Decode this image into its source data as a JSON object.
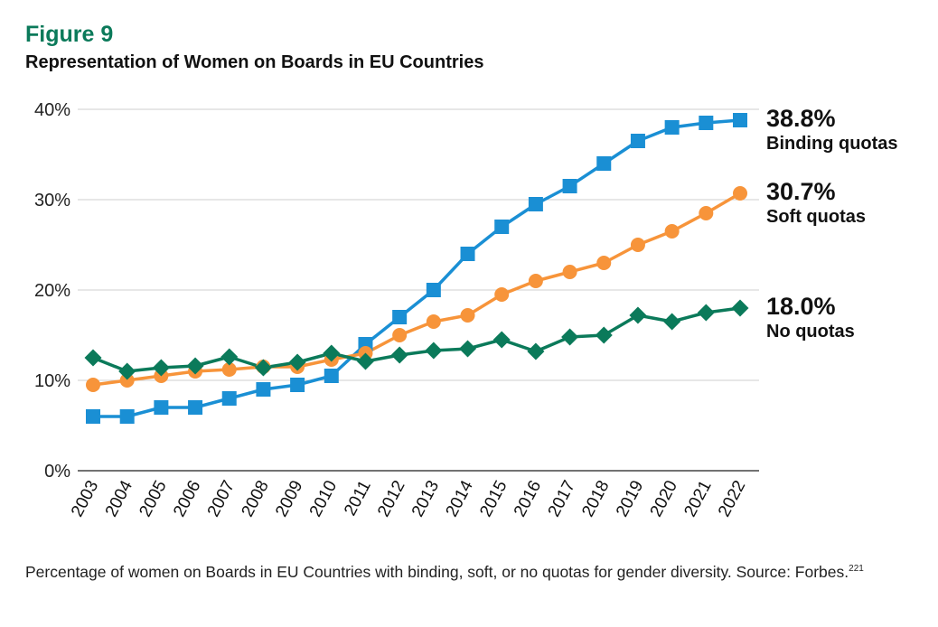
{
  "figure_label": "Figure 9",
  "caption": {
    "text": "Percentage of women on Boards in EU Countries with binding, soft, or no quotas for gender diversity. Source: Forbes.",
    "footnote": "221"
  },
  "chart_data": {
    "type": "line",
    "title": "Representation of Women on Boards in EU Countries",
    "xlabel": "",
    "ylabel": "",
    "ylim": [
      0,
      40
    ],
    "yticks": [
      0,
      10,
      20,
      30,
      40
    ],
    "ytick_labels": [
      "0%",
      "10%",
      "20%",
      "30%",
      "40%"
    ],
    "grid": "horizontal",
    "categories": [
      "2003",
      "2004",
      "2005",
      "2006",
      "2007",
      "2008",
      "2009",
      "2010",
      "2011",
      "2012",
      "2013",
      "2014",
      "2015",
      "2016",
      "2017",
      "2018",
      "2019",
      "2020",
      "2021",
      "2022"
    ],
    "series": [
      {
        "name": "Binding quotas",
        "end_label": "38.8%",
        "color": "#1a8fd4",
        "marker": "square",
        "values": [
          6,
          6,
          7,
          7,
          8,
          9,
          9.5,
          10.5,
          14,
          17,
          20,
          24,
          27,
          29.5,
          31.5,
          34,
          36.5,
          38,
          38.5,
          38.8
        ]
      },
      {
        "name": "Soft quotas",
        "end_label": "30.7%",
        "color": "#f7943a",
        "marker": "circle",
        "values": [
          9.5,
          10,
          10.5,
          11,
          11.2,
          11.5,
          11.5,
          12.3,
          13,
          15,
          16.5,
          17.2,
          19.5,
          21,
          22,
          23,
          25,
          26.5,
          28.5,
          30.7
        ]
      },
      {
        "name": "No quotas",
        "end_label": "18.0%",
        "color": "#0b7a5a",
        "marker": "diamond",
        "values": [
          12.5,
          11,
          11.4,
          11.6,
          12.6,
          11.4,
          12,
          13,
          12.1,
          12.8,
          13.3,
          13.5,
          14.5,
          13.2,
          14.8,
          15,
          17.2,
          16.5,
          17.5,
          18
        ]
      }
    ]
  }
}
